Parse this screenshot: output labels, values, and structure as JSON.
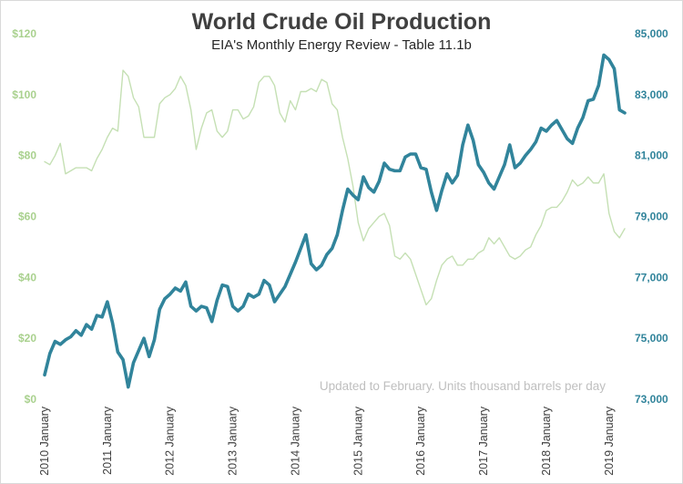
{
  "chart_data": {
    "type": "line",
    "title": "World Crude Oil Production",
    "subtitle": "EIA's Monthly Energy Review - Table 11.1b",
    "annotation": "Updated to February. Units thousand barrels per day",
    "legend": "none",
    "grid": false,
    "x_ticks": [
      "2010 January",
      "2011 January",
      "2012 January",
      "2013 January",
      "2014 January",
      "2015 January",
      "2016 January",
      "2017 January",
      "2018 January",
      "2019 January"
    ],
    "y_left": {
      "ticks": [
        "$0",
        "$20",
        "$40",
        "$60",
        "$80",
        "$100",
        "$120"
      ],
      "ylim": [
        0,
        120
      ],
      "color": "#a9d18e"
    },
    "y_right": {
      "ticks": [
        "73,000",
        "75,000",
        "77,000",
        "79,000",
        "81,000",
        "83,000",
        "85,000"
      ],
      "ylim": [
        73000,
        85000
      ],
      "color": "#31849b"
    },
    "series": [
      {
        "axis": "left",
        "color": "#c5e0b4",
        "values": [
          78,
          77,
          80,
          84,
          74,
          75,
          76,
          76,
          76,
          75,
          79,
          82,
          86,
          89,
          88,
          108,
          106,
          99,
          96,
          86,
          86,
          86,
          97,
          99,
          100,
          102,
          106,
          103,
          95,
          82,
          89,
          94,
          95,
          88,
          86,
          88,
          95,
          95,
          92,
          93,
          96,
          104,
          106,
          106,
          103,
          94,
          91,
          98,
          95,
          101,
          101,
          102,
          101,
          105,
          104,
          97,
          95,
          86,
          79,
          70,
          58,
          52,
          56,
          58,
          60,
          61,
          57,
          47,
          46,
          48,
          46,
          41,
          36,
          31,
          33,
          39,
          44,
          46,
          47,
          44,
          44,
          46,
          46,
          48,
          49,
          53,
          51,
          53,
          50,
          47,
          46,
          47,
          49,
          50,
          54,
          57,
          62,
          63,
          63,
          65,
          68,
          72,
          70,
          71,
          73,
          71,
          71,
          74,
          61,
          55,
          53,
          56
        ]
      },
      {
        "axis": "right",
        "color": "#31849b",
        "values": [
          73800,
          74500,
          74900,
          74800,
          74950,
          75050,
          75250,
          75100,
          75450,
          75300,
          75750,
          75700,
          76200,
          75500,
          74550,
          74300,
          73400,
          74200,
          74600,
          75000,
          74400,
          74950,
          75950,
          76300,
          76450,
          76650,
          76550,
          76850,
          76050,
          75900,
          76050,
          76000,
          75550,
          76250,
          76750,
          76700,
          76050,
          75900,
          76050,
          76450,
          76350,
          76450,
          76900,
          76750,
          76200,
          76450,
          76700,
          77100,
          77500,
          77950,
          78400,
          77450,
          77250,
          77400,
          77750,
          77950,
          78400,
          79200,
          79900,
          79700,
          79550,
          80300,
          79950,
          79800,
          80150,
          80750,
          80550,
          80500,
          80500,
          80950,
          81050,
          81050,
          80600,
          80550,
          79800,
          79200,
          79850,
          80400,
          80100,
          80350,
          81350,
          82000,
          81500,
          80700,
          80450,
          80100,
          79900,
          80300,
          80700,
          81350,
          80600,
          80750,
          81000,
          81200,
          81450,
          81900,
          81800,
          82000,
          82150,
          81850,
          81550,
          81400,
          81900,
          82250,
          82800,
          82850,
          83300,
          84300,
          84150,
          83850,
          82500,
          82400
        ]
      }
    ]
  }
}
